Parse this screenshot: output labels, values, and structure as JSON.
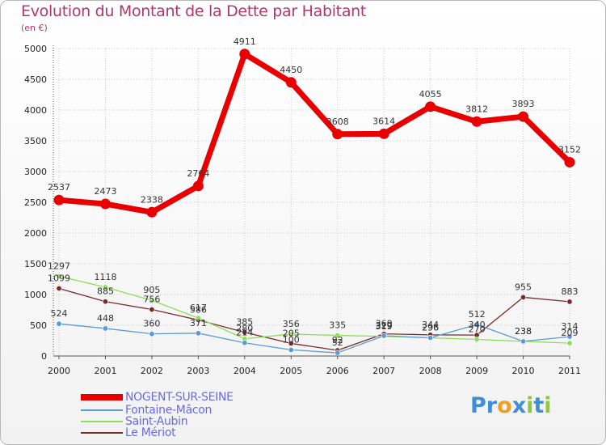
{
  "chart_data": {
    "type": "line",
    "title": "Evolution du Montant de la Dette par Habitant",
    "ylabel": "(en €)",
    "xlabel": "",
    "ylim": [
      0,
      5000
    ],
    "yticks": [
      0,
      500,
      1000,
      1500,
      2000,
      2500,
      3000,
      3500,
      4000,
      4500,
      5000
    ],
    "categories": [
      "2000",
      "2001",
      "2002",
      "2003",
      "2004",
      "2005",
      "2006",
      "2007",
      "2008",
      "2009",
      "2010",
      "2011"
    ],
    "series": [
      {
        "name": "NOGENT-SUR-SEINE",
        "color": "#e80000",
        "values": [
          2537,
          2473,
          2338,
          2764,
          4911,
          4450,
          3608,
          3614,
          4055,
          3812,
          3893,
          3152
        ]
      },
      {
        "name": "Fontaine-Mâcon",
        "color": "#5a9bd5",
        "values": [
          524,
          448,
          360,
          371,
          214,
          100,
          52,
          329,
          296,
          512,
          238,
          314
        ]
      },
      {
        "name": "Saint-Aubin",
        "color": "#8fdc5a",
        "values": [
          1297,
          1118,
          905,
          617,
          280,
          356,
          335,
          319,
          296,
          270,
          238,
          209
        ]
      },
      {
        "name": "Le Mériot",
        "color": "#7a2a2a",
        "values": [
          1099,
          885,
          756,
          586,
          385,
          205,
          92,
          360,
          344,
          340,
          955,
          883
        ]
      }
    ]
  },
  "brand": {
    "name": "Proxiti",
    "letters": [
      "P",
      "r",
      "o",
      "x",
      "i",
      "t",
      "i"
    ],
    "colors": [
      "#3e8fd8",
      "#3e8fd8",
      "#f0a020",
      "#3e8fd8",
      "#8fc83a",
      "#3e8fd8",
      "#8fc83a"
    ]
  }
}
